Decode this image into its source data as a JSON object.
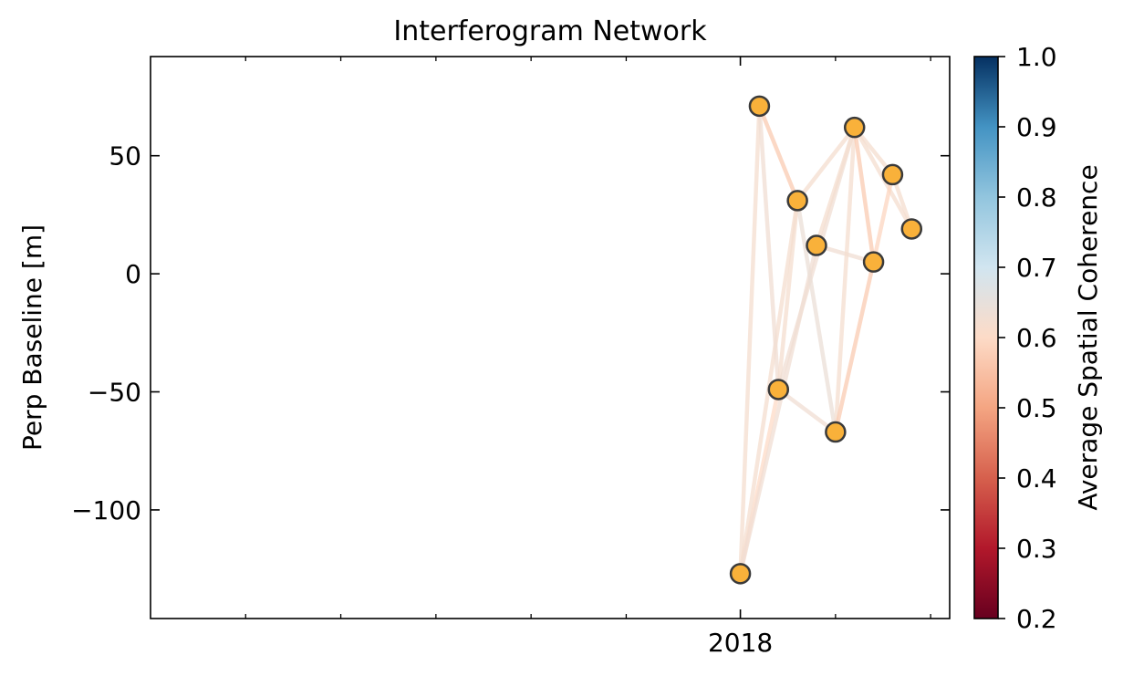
{
  "chart_data": {
    "type": "network",
    "title": "Interferogram Network",
    "xlabel": "",
    "ylabel": "Perp Baseline [m]",
    "xlim": [
      "2017-12-01",
      "2018-01-12"
    ],
    "ylim": [
      -146,
      92
    ],
    "x_ticks": [
      {
        "value": "2018-01-01",
        "label": "2018"
      }
    ],
    "x_minor_ticks": [
      "2017-12-06",
      "2017-12-11",
      "2017-12-16",
      "2017-12-21",
      "2017-12-26",
      "2018-01-06",
      "2018-01-11"
    ],
    "y_ticks": [
      {
        "value": 50,
        "label": "50"
      },
      {
        "value": 0,
        "label": "0"
      },
      {
        "value": -50,
        "label": "−50"
      },
      {
        "value": -100,
        "label": "−100"
      }
    ],
    "nodes": [
      {
        "date": "2018-01-01",
        "y": -127
      },
      {
        "date": "2018-01-02",
        "y": 71
      },
      {
        "date": "2018-01-03",
        "y": -49
      },
      {
        "date": "2018-01-04",
        "y": 31
      },
      {
        "date": "2018-01-05",
        "y": 12
      },
      {
        "date": "2018-01-06",
        "y": -67
      },
      {
        "date": "2018-01-07",
        "y": 62
      },
      {
        "date": "2018-01-08",
        "y": 5
      },
      {
        "date": "2018-01-09",
        "y": 42
      },
      {
        "date": "2018-01-10",
        "y": 19
      }
    ],
    "edges": [
      {
        "from": 0,
        "to": 1,
        "coherence": 0.62
      },
      {
        "from": 0,
        "to": 2,
        "coherence": 0.6
      },
      {
        "from": 0,
        "to": 3,
        "coherence": 0.62
      },
      {
        "from": 0,
        "to": 4,
        "coherence": 0.63
      },
      {
        "from": 1,
        "to": 3,
        "coherence": 0.57
      },
      {
        "from": 1,
        "to": 2,
        "coherence": 0.63
      },
      {
        "from": 2,
        "to": 3,
        "coherence": 0.62
      },
      {
        "from": 2,
        "to": 5,
        "coherence": 0.63
      },
      {
        "from": 2,
        "to": 6,
        "coherence": 0.63
      },
      {
        "from": 3,
        "to": 5,
        "coherence": 0.64
      },
      {
        "from": 3,
        "to": 6,
        "coherence": 0.62
      },
      {
        "from": 4,
        "to": 6,
        "coherence": 0.62
      },
      {
        "from": 4,
        "to": 7,
        "coherence": 0.63
      },
      {
        "from": 5,
        "to": 6,
        "coherence": 0.62
      },
      {
        "from": 5,
        "to": 7,
        "coherence": 0.57
      },
      {
        "from": 6,
        "to": 7,
        "coherence": 0.57
      },
      {
        "from": 6,
        "to": 8,
        "coherence": 0.62
      },
      {
        "from": 6,
        "to": 9,
        "coherence": 0.62
      },
      {
        "from": 7,
        "to": 8,
        "coherence": 0.59
      },
      {
        "from": 8,
        "to": 9,
        "coherence": 0.62
      }
    ],
    "colorbar": {
      "label": "Average Spatial Coherence",
      "min": 0.2,
      "max": 1.0,
      "ticks": [
        1.0,
        0.9,
        0.8,
        0.7,
        0.6,
        0.5,
        0.4,
        0.3,
        0.2
      ],
      "tick_labels": [
        "1.0",
        "0.9",
        "0.8",
        "0.7",
        "0.6",
        "0.5",
        "0.4",
        "0.3",
        "0.2"
      ],
      "colormap": "RdBu",
      "hidden_range": [
        0.7,
        1.0
      ]
    },
    "node_color": "#f9b13a",
    "node_edge_color": "#3a3a3a",
    "grid": false
  }
}
